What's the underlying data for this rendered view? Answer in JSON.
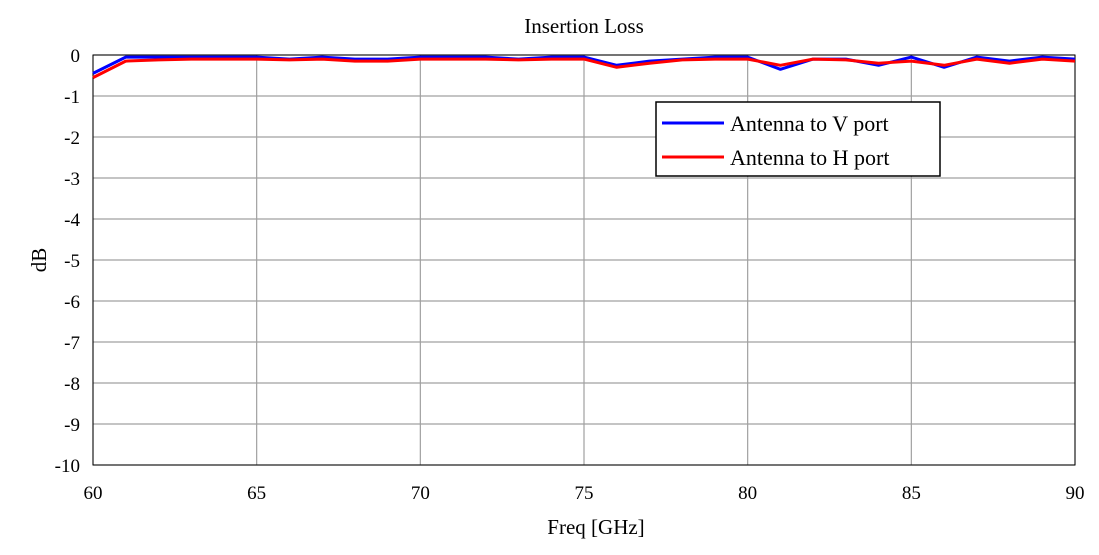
{
  "chart_data": {
    "type": "line",
    "title": "Insertion Loss",
    "xlabel": "Freq [GHz]",
    "ylabel": "dB",
    "xlim": [
      60,
      90
    ],
    "ylim": [
      -10,
      0
    ],
    "xticks": [
      60,
      65,
      70,
      75,
      80,
      85,
      90
    ],
    "yticks": [
      0,
      -1,
      -2,
      -3,
      -4,
      -5,
      -6,
      -7,
      -8,
      -9,
      -10
    ],
    "grid": true,
    "legend": "top-right",
    "series": [
      {
        "name": "Antenna to V port",
        "color": "#0000ff",
        "x": [
          60,
          61,
          62,
          63,
          64,
          65,
          66,
          67,
          68,
          69,
          70,
          71,
          72,
          73,
          74,
          75,
          76,
          77,
          78,
          79,
          80,
          81,
          82,
          83,
          84,
          85,
          86,
          87,
          88,
          89,
          90
        ],
        "y": [
          -0.45,
          -0.05,
          -0.05,
          -0.05,
          -0.05,
          -0.05,
          -0.1,
          -0.05,
          -0.1,
          -0.1,
          -0.05,
          -0.05,
          -0.05,
          -0.1,
          -0.05,
          -0.05,
          -0.25,
          -0.15,
          -0.1,
          -0.05,
          -0.05,
          -0.35,
          -0.1,
          -0.1,
          -0.25,
          -0.05,
          -0.3,
          -0.05,
          -0.15,
          -0.05,
          -0.1
        ]
      },
      {
        "name": "Antenna to H port",
        "color": "#ff0000",
        "x": [
          60,
          61,
          62,
          63,
          64,
          65,
          66,
          67,
          68,
          69,
          70,
          71,
          72,
          73,
          74,
          75,
          76,
          77,
          78,
          79,
          80,
          81,
          82,
          83,
          84,
          85,
          86,
          87,
          88,
          89,
          90
        ],
        "y": [
          -0.55,
          -0.15,
          -0.12,
          -0.1,
          -0.1,
          -0.1,
          -0.12,
          -0.1,
          -0.15,
          -0.15,
          -0.1,
          -0.1,
          -0.1,
          -0.12,
          -0.1,
          -0.1,
          -0.3,
          -0.2,
          -0.12,
          -0.1,
          -0.1,
          -0.25,
          -0.1,
          -0.12,
          -0.2,
          -0.15,
          -0.25,
          -0.1,
          -0.2,
          -0.1,
          -0.15
        ]
      }
    ]
  }
}
